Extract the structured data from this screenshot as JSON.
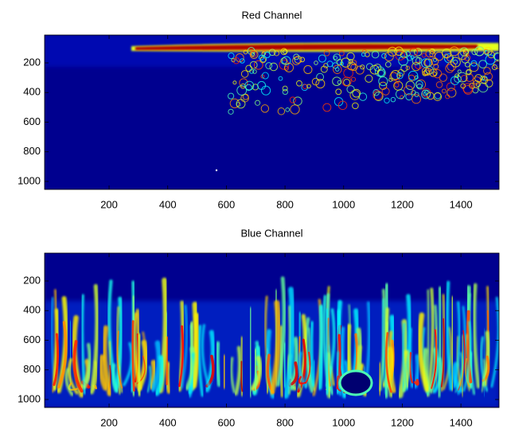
{
  "chart_data": [
    {
      "type": "image",
      "title": "Red Channel",
      "xlim": [
        -20,
        1530
      ],
      "xticks": [
        200,
        400,
        600,
        800,
        1000,
        1200,
        1400
      ],
      "ylim": [
        12,
        1054
      ],
      "yticks": [
        200,
        400,
        600,
        800,
        1000
      ],
      "y_reversed": true
    },
    {
      "type": "image",
      "title": "Blue Channel",
      "xlim": [
        -20,
        1530
      ],
      "xticks": [
        200,
        400,
        600,
        800,
        1000,
        1200,
        1400
      ],
      "ylim": [
        12,
        1054
      ],
      "yticks": [
        200,
        400,
        600,
        800,
        1000
      ],
      "y_reversed": true
    }
  ]
}
